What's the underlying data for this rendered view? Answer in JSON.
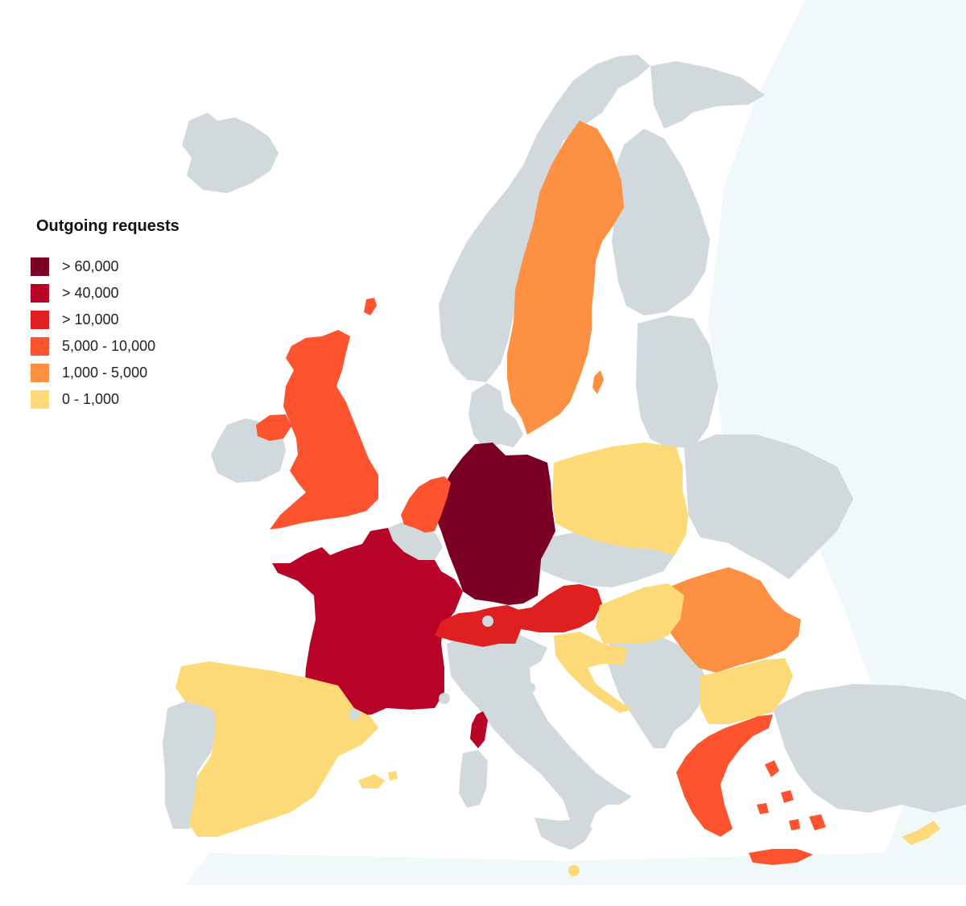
{
  "legend": {
    "title": "Outgoing requests",
    "items": [
      {
        "label": "> 60,000",
        "color": "#7a0025"
      },
      {
        "label": "> 40,000",
        "color": "#b70327"
      },
      {
        "label": "> 10,000",
        "color": "#e01f20"
      },
      {
        "label": "5,000 - 10,000",
        "color": "#fd532e"
      },
      {
        "label": "1,000 - 5,000",
        "color": "#fd9042"
      },
      {
        "label": "0 - 1,000",
        "color": "#fdd977"
      }
    ]
  },
  "colors": {
    "background": "#ffffff",
    "sea_wash": "#f1f8fa",
    "no_data": "#d1d9dd"
  },
  "countries": [
    {
      "name": "Germany",
      "category": "> 60,000"
    },
    {
      "name": "France",
      "category": "> 40,000"
    },
    {
      "name": "Corsica",
      "category": "> 40,000"
    },
    {
      "name": "Switzerland",
      "category": "> 10,000"
    },
    {
      "name": "Austria",
      "category": "> 10,000"
    },
    {
      "name": "United Kingdom",
      "category": "5,000 - 10,000"
    },
    {
      "name": "Netherlands",
      "category": "5,000 - 10,000"
    },
    {
      "name": "Greece",
      "category": "5,000 - 10,000"
    },
    {
      "name": "Sweden",
      "category": "1,000 - 5,000"
    },
    {
      "name": "Romania",
      "category": "1,000 - 5,000"
    },
    {
      "name": "Spain",
      "category": "0 - 1,000"
    },
    {
      "name": "Poland",
      "category": "0 - 1,000"
    },
    {
      "name": "Hungary",
      "category": "0 - 1,000"
    },
    {
      "name": "Croatia",
      "category": "0 - 1,000"
    },
    {
      "name": "Bulgaria",
      "category": "0 - 1,000"
    },
    {
      "name": "Cyprus",
      "category": "0 - 1,000"
    },
    {
      "name": "Malta",
      "category": "0 - 1,000"
    }
  ]
}
